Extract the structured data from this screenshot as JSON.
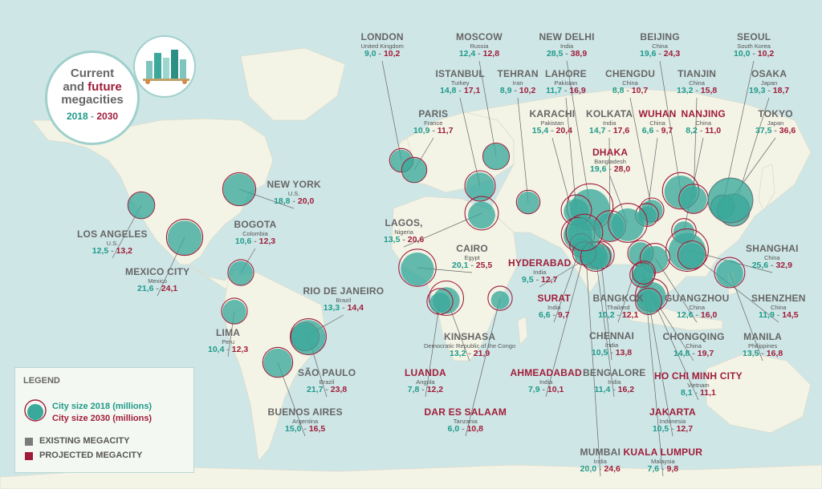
{
  "title": {
    "line1": "Current",
    "line2_a": "and",
    "line2_b": "future",
    "line3": "megacities",
    "year_a": "2018",
    "year_sep": "-",
    "year_b": "2030"
  },
  "legend": {
    "title": "LEGEND",
    "size_2018": "City size 2018 (millions)",
    "size_2030": "City size 2030 (millions)",
    "existing": "EXISTING MEGACITY",
    "projected": "PROJECTED MEGACITY",
    "colors": {
      "existing": "#7b7b7b",
      "projected": "#a01d3a",
      "circle_2018": "#3aa89a",
      "circle_2030": "#a01d3a"
    }
  },
  "cities": [
    {
      "name": "LONDON",
      "country": "United Kingdom",
      "v2018": "9,0",
      "v2030": "10,2",
      "type": "projected_existing"
    },
    {
      "name": "MOSCOW",
      "country": "Russia",
      "v2018": "12,4",
      "v2030": "12,8",
      "type": "existing"
    },
    {
      "name": "NEW DELHI",
      "country": "India",
      "v2018": "28,5",
      "v2030": "38,9",
      "type": "existing"
    },
    {
      "name": "BEIJING",
      "country": "China",
      "v2018": "19,6",
      "v2030": "24,3",
      "type": "existing"
    },
    {
      "name": "SEOUL",
      "country": "South Korea",
      "v2018": "10,0",
      "v2030": "10,2",
      "type": "existing"
    },
    {
      "name": "ISTANBUL",
      "country": "Turkey",
      "v2018": "14,8",
      "v2030": "17,1",
      "type": "existing"
    },
    {
      "name": "TEHRAN",
      "country": "Iran",
      "v2018": "8,9",
      "v2030": "10,2",
      "type": "existing"
    },
    {
      "name": "LAHORE",
      "country": "Pakistan",
      "v2018": "11,7",
      "v2030": "16,9",
      "type": "existing"
    },
    {
      "name": "CHENGDU",
      "country": "China",
      "v2018": "8,8",
      "v2030": "10,7",
      "type": "existing"
    },
    {
      "name": "TIANJIN",
      "country": "China",
      "v2018": "13,2",
      "v2030": "15,8",
      "type": "existing"
    },
    {
      "name": "OSAKA",
      "country": "Japan",
      "v2018": "19,3",
      "v2030": "18,7",
      "type": "existing"
    },
    {
      "name": "PARIS",
      "country": "France",
      "v2018": "10,9",
      "v2030": "11,7",
      "type": "existing"
    },
    {
      "name": "KARACHI",
      "country": "Pakistan",
      "v2018": "15,4",
      "v2030": "20,4",
      "type": "existing"
    },
    {
      "name": "KOLKATA",
      "country": "India",
      "v2018": "14,7",
      "v2030": "17,6",
      "type": "existing"
    },
    {
      "name": "WUHAN",
      "country": "China",
      "v2018": "6,6",
      "v2030": "9,7",
      "type": "projected"
    },
    {
      "name": "NANJING",
      "country": "China",
      "v2018": "8,2",
      "v2030": "11,0",
      "type": "projected"
    },
    {
      "name": "TOKYO",
      "country": "Japan",
      "v2018": "37,5",
      "v2030": "36,6",
      "type": "existing"
    },
    {
      "name": "DHAKA",
      "country": "Bangladesh",
      "v2018": "19,6",
      "v2030": "28,0",
      "type": "projected"
    },
    {
      "name": "NEW YORK",
      "country": "U.S.",
      "v2018": "18,8",
      "v2030": "20,0",
      "type": "existing"
    },
    {
      "name": "BOGOTA",
      "country": "Colombia",
      "v2018": "10,6",
      "v2030": "12,3",
      "type": "existing"
    },
    {
      "name": "LOS ANGELES",
      "country": "U.S.",
      "v2018": "12,5",
      "v2030": "13,2",
      "type": "existing"
    },
    {
      "name": "MEXICO CITY",
      "country": "Mexico",
      "v2018": "21,6",
      "v2030": "24,1",
      "type": "existing"
    },
    {
      "name": "LAGOS,",
      "country": "Nigeria",
      "v2018": "13,5",
      "v2030": "20,6",
      "type": "existing"
    },
    {
      "name": "CAIRO",
      "country": "Egypt",
      "v2018": "20,1",
      "v2030": "25,5",
      "type": "existing"
    },
    {
      "name": "HYDERABAD",
      "country": "India",
      "v2018": "9,5",
      "v2030": "12,7",
      "type": "projected"
    },
    {
      "name": "SHANGHAI",
      "country": "China",
      "v2018": "25,6",
      "v2030": "32,9",
      "type": "existing"
    },
    {
      "name": "RIO DE JANEIRO",
      "country": "Brazil",
      "v2018": "13,3",
      "v2030": "14,4",
      "type": "existing"
    },
    {
      "name": "SURAT",
      "country": "India",
      "v2018": "6,6",
      "v2030": "9,7",
      "type": "projected"
    },
    {
      "name": "BANGKOK",
      "country": "Thailand",
      "v2018": "10,2",
      "v2030": "12,1",
      "type": "existing"
    },
    {
      "name": "GUANGZHOU",
      "country": "China",
      "v2018": "12,6",
      "v2030": "16,0",
      "type": "existing"
    },
    {
      "name": "SHENZHEN",
      "country": "China",
      "v2018": "11,9",
      "v2030": "14,5",
      "type": "existing"
    },
    {
      "name": "LIMA",
      "country": "Peru",
      "v2018": "10,4",
      "v2030": "12,3",
      "type": "existing"
    },
    {
      "name": "KINSHASA",
      "country": "Democratic Republic of the Congo",
      "v2018": "13,2",
      "v2030": "21,9",
      "type": "existing"
    },
    {
      "name": "CHENNAI",
      "country": "India",
      "v2018": "10,5",
      "v2030": "13,8",
      "type": "existing"
    },
    {
      "name": "CHONGQING",
      "country": "China",
      "v2018": "14,8",
      "v2030": "19,7",
      "type": "existing"
    },
    {
      "name": "MANILA",
      "country": "Philippines",
      "v2018": "13,5",
      "v2030": "16,8",
      "type": "existing"
    },
    {
      "name": "SÃO PAULO",
      "country": "Brazil",
      "v2018": "21,7",
      "v2030": "23,8",
      "type": "existing"
    },
    {
      "name": "LUANDA",
      "country": "Angola",
      "v2018": "7,8",
      "v2030": "12,2",
      "type": "projected"
    },
    {
      "name": "AHMEADABAD",
      "country": "India",
      "v2018": "7,9",
      "v2030": "10,1",
      "type": "projected"
    },
    {
      "name": "BENGALORE",
      "country": "India",
      "v2018": "11,4",
      "v2030": "16,2",
      "type": "existing"
    },
    {
      "name": "HO CHI MINH CITY",
      "country": "Vietnam",
      "v2018": "8,1",
      "v2030": "11,1",
      "type": "projected"
    },
    {
      "name": "BUENOS AIRES",
      "country": "Argentina",
      "v2018": "15,0",
      "v2030": "16,5",
      "type": "existing"
    },
    {
      "name": "DAR ES SALAAM",
      "country": "Tanzania",
      "v2018": "6,0",
      "v2030": "10,8",
      "type": "projected"
    },
    {
      "name": "JAKARTA",
      "country": "Indonesia",
      "v2018": "10,5",
      "v2030": "12,7",
      "type": "projected"
    },
    {
      "name": "MUMBAI",
      "country": "India",
      "v2018": "20,0",
      "v2030": "24,6",
      "type": "existing"
    },
    {
      "name": "KUALA LUMPUR",
      "country": "Malaysia",
      "v2018": "7,6",
      "v2030": "9,8",
      "type": "projected"
    }
  ]
}
